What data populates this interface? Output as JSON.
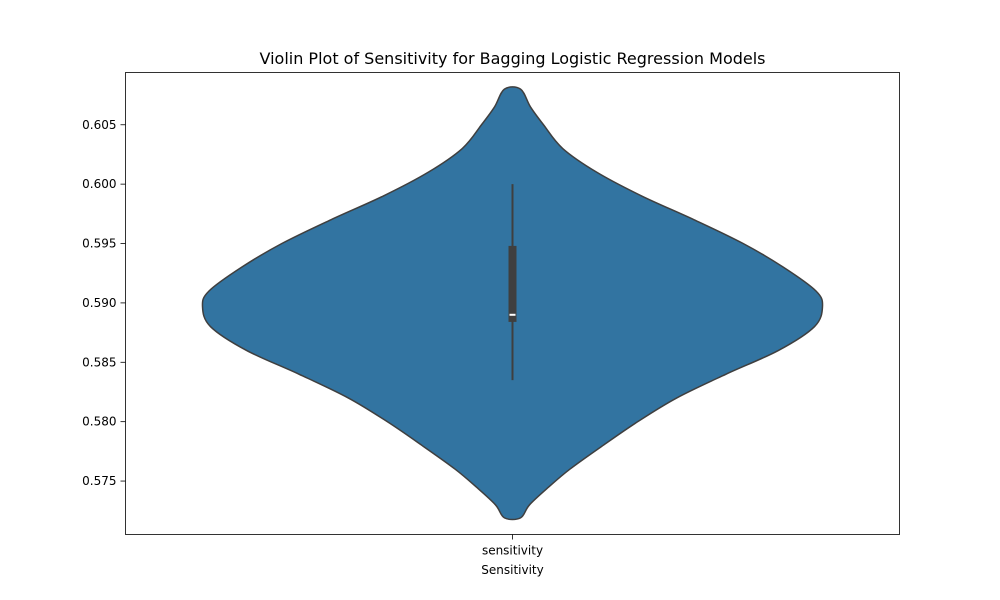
{
  "chart_data": {
    "type": "violin",
    "title": "Violin Plot of Sensitivity for Bagging Logistic Regression Models",
    "xlabel": "Sensitivity",
    "ylabel": "",
    "categories": [
      "sensitivity"
    ],
    "ylim": [
      0.5705,
      0.6094
    ],
    "yticks": [
      0.575,
      0.58,
      0.585,
      0.59,
      0.595,
      0.6,
      0.605
    ],
    "ytick_labels": [
      "0.575",
      "0.580",
      "0.585",
      "0.590",
      "0.595",
      "0.600",
      "0.605"
    ],
    "grid": false,
    "violin": {
      "min": 0.5719,
      "max": 0.608,
      "density_profile": [
        [
          0.5719,
          0.026
        ],
        [
          0.573,
          0.055
        ],
        [
          0.5745,
          0.117
        ],
        [
          0.576,
          0.185
        ],
        [
          0.578,
          0.292
        ],
        [
          0.58,
          0.404
        ],
        [
          0.582,
          0.53
        ],
        [
          0.584,
          0.689
        ],
        [
          0.586,
          0.858
        ],
        [
          0.588,
          0.974
        ],
        [
          0.5897,
          1.0
        ],
        [
          0.591,
          0.979
        ],
        [
          0.593,
          0.874
        ],
        [
          0.595,
          0.744
        ],
        [
          0.597,
          0.586
        ],
        [
          0.599,
          0.417
        ],
        [
          0.601,
          0.272
        ],
        [
          0.603,
          0.162
        ],
        [
          0.605,
          0.1
        ],
        [
          0.6065,
          0.058
        ],
        [
          0.608,
          0.026
        ]
      ],
      "whisker_low": 0.5835,
      "whisker_high": 0.6,
      "q1": 0.5884,
      "median": 0.589,
      "q3": 0.5948
    },
    "colors": {
      "violin_fill": "#3274a1",
      "violin_edge": "#3f3f3f",
      "box": "#3f3f3f",
      "median": "#ffffff"
    }
  }
}
